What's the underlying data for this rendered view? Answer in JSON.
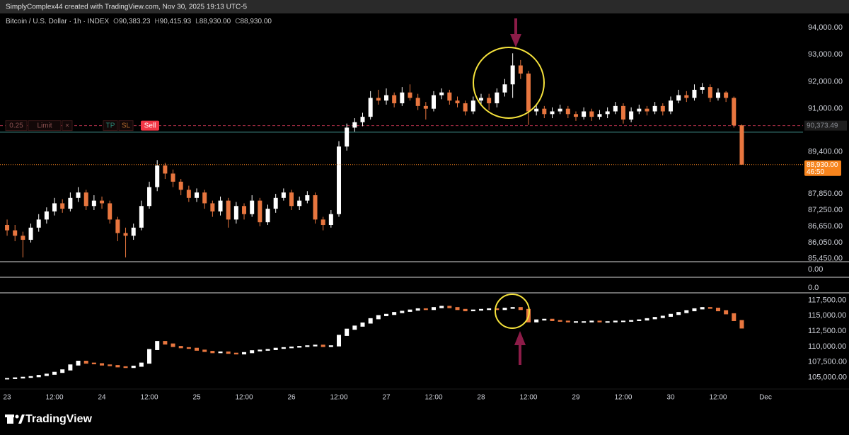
{
  "header": {
    "text": "SimplyComplex44 created with TradingView.com, Nov 30, 2025 19:13 UTC-5"
  },
  "footer": {
    "brand": "TradingView"
  },
  "panels": [
    {
      "label": "0.00"
    },
    {
      "label": "0.0"
    }
  ],
  "chart_data": [
    {
      "type": "candlestick",
      "legend": {
        "symbol": "Bitcoin / U.S. Dollar · 1h · INDEX",
        "fields": [
          {
            "key": "O",
            "label": "90,383.23"
          },
          {
            "key": "H",
            "label": "90,415.93"
          },
          {
            "key": "L",
            "label": "88,930.00"
          },
          {
            "key": "C",
            "label": "88,930.00"
          }
        ]
      },
      "x": [
        0,
        2,
        4,
        6,
        8,
        10,
        12,
        14,
        16,
        18,
        20,
        22,
        24,
        26,
        28,
        30,
        32,
        34,
        36,
        38,
        40,
        42,
        44,
        46,
        48,
        50,
        52,
        54,
        56,
        58,
        60,
        62,
        64,
        66,
        68,
        70,
        72,
        74,
        76,
        78,
        80,
        82,
        84,
        86,
        88,
        90,
        92,
        94,
        96,
        98,
        100,
        102,
        104,
        106,
        108,
        110,
        112,
        114,
        116,
        118,
        120,
        122,
        124,
        126,
        128,
        130,
        132,
        134,
        136,
        138,
        140,
        142,
        144,
        146,
        148,
        150,
        152,
        154,
        156,
        158,
        160,
        162,
        164,
        166,
        168,
        170,
        172,
        174,
        176,
        178,
        180,
        182,
        184,
        186
      ],
      "open": [
        86700,
        86500,
        86300,
        86150,
        86600,
        86900,
        87200,
        87500,
        87300,
        87700,
        87900,
        87400,
        87600,
        87500,
        86900,
        86400,
        86300,
        86600,
        87400,
        88100,
        88900,
        88600,
        88300,
        88000,
        87700,
        87900,
        87500,
        87200,
        87600,
        86900,
        87400,
        87100,
        87600,
        86800,
        87300,
        87700,
        87900,
        87400,
        87600,
        87800,
        86900,
        86700,
        87100,
        89600,
        90300,
        90500,
        90700,
        91400,
        91300,
        91500,
        91200,
        91600,
        91400,
        91100,
        91000,
        91500,
        91600,
        91300,
        91200,
        90900,
        91300,
        91400,
        91200,
        91600,
        91900,
        92600,
        92300,
        90900,
        91000,
        90800,
        90900,
        91000,
        90800,
        90700,
        90900,
        90700,
        90800,
        90900,
        91100,
        90600,
        90900,
        91000,
        90900,
        91100,
        90900,
        91300,
        91500,
        91400,
        91700,
        91800,
        91400,
        91600,
        91400,
        90383.23
      ],
      "high": [
        86900,
        86700,
        86450,
        86750,
        87100,
        87350,
        87700,
        87650,
        87900,
        88100,
        88000,
        87800,
        87750,
        87600,
        87000,
        86600,
        86750,
        87600,
        88300,
        89100,
        89000,
        88750,
        88400,
        88150,
        88050,
        88000,
        87600,
        87750,
        87700,
        87550,
        87500,
        87800,
        87700,
        87450,
        87850,
        88050,
        88000,
        87750,
        87950,
        87900,
        87000,
        87250,
        89800,
        90450,
        90650,
        90850,
        91650,
        91700,
        91750,
        91600,
        91800,
        91900,
        91550,
        91250,
        91650,
        91750,
        91700,
        91450,
        91300,
        91450,
        91550,
        91550,
        91750,
        92100,
        93050,
        92800,
        92400,
        91150,
        91100,
        91050,
        91150,
        91100,
        90900,
        91050,
        91000,
        90950,
        91050,
        91250,
        91200,
        91050,
        91150,
        91100,
        91250,
        91200,
        91450,
        91700,
        91650,
        91900,
        91950,
        91900,
        91750,
        91650,
        91450,
        90415.93
      ],
      "low": [
        86300,
        86100,
        85500,
        86050,
        86450,
        86750,
        87050,
        87150,
        87200,
        87550,
        87250,
        87250,
        87300,
        86750,
        86100,
        85500,
        86150,
        86500,
        87300,
        87950,
        88400,
        88100,
        87800,
        87550,
        87550,
        87300,
        87000,
        87050,
        86600,
        86750,
        86900,
        87000,
        86650,
        86700,
        87150,
        87600,
        87250,
        87250,
        87500,
        86750,
        86500,
        86600,
        87000,
        89450,
        90150,
        90350,
        90600,
        91150,
        91150,
        91050,
        91100,
        91300,
        90950,
        90600,
        90900,
        91350,
        91150,
        91050,
        90750,
        90800,
        91150,
        90950,
        91050,
        91450,
        91400,
        92100,
        90400,
        90750,
        90650,
        90650,
        90800,
        90650,
        90550,
        90600,
        90550,
        90600,
        90650,
        90800,
        90450,
        90500,
        90800,
        90750,
        90800,
        90750,
        90800,
        91200,
        91250,
        91300,
        91550,
        91250,
        91300,
        91250,
        90300,
        88930
      ],
      "close": [
        86500,
        86300,
        86150,
        86600,
        86900,
        87200,
        87500,
        87300,
        87700,
        87900,
        87400,
        87600,
        87500,
        86900,
        86400,
        86300,
        86600,
        87400,
        88100,
        88900,
        88600,
        88300,
        88000,
        87700,
        87900,
        87500,
        87200,
        87600,
        86900,
        87400,
        87100,
        87600,
        86800,
        87300,
        87700,
        87900,
        87400,
        87600,
        87800,
        86900,
        86700,
        87100,
        89600,
        90300,
        90500,
        90700,
        91400,
        91300,
        91500,
        91200,
        91600,
        91400,
        91100,
        91000,
        91500,
        91600,
        91300,
        91200,
        90900,
        91300,
        91400,
        91200,
        91600,
        91900,
        92600,
        92300,
        90900,
        91000,
        90800,
        90900,
        91000,
        90800,
        90700,
        90900,
        90700,
        90800,
        90900,
        91100,
        90600,
        90900,
        91000,
        90900,
        91100,
        90900,
        91300,
        91500,
        91400,
        91700,
        91800,
        91400,
        91600,
        91400,
        90383.23,
        88930
      ],
      "up_color": "#ffffff",
      "down_color": "#e8763f",
      "xlim": [
        -1.8,
        201.5
      ],
      "ylim": [
        85340,
        94550
      ],
      "grid": false,
      "yticks": [
        {
          "value": 94000,
          "label": "94,000.00"
        },
        {
          "value": 93000,
          "label": "93,000.00"
        },
        {
          "value": 92000,
          "label": "92,000.00"
        },
        {
          "value": 91000,
          "label": "91,000.00"
        },
        {
          "value": 89400,
          "label": "89,400.00"
        },
        {
          "value": 87850,
          "label": "87,850.00"
        },
        {
          "value": 87250,
          "label": "87,250.00"
        },
        {
          "value": 86650,
          "label": "86,650.00"
        },
        {
          "value": 86050,
          "label": "86,050.00"
        },
        {
          "value": 85450,
          "label": "85,450.00"
        }
      ],
      "price_lines": [
        {
          "value": 90373.49,
          "label": "90,373.49",
          "color": "#b2304a",
          "style": "dashed"
        },
        {
          "value": 90130,
          "color": "#3f8f8a",
          "style": "solid"
        }
      ],
      "last_price": {
        "label": "88,930.00",
        "countdown": "46:50",
        "color": "#f7841d"
      },
      "order": {
        "qty": "0.25",
        "kind": "Limit",
        "cancel": "×",
        "tp": "TP",
        "sl": "SL",
        "side": "Sell"
      }
    },
    {
      "type": "candlestick",
      "x": [
        0,
        2,
        4,
        6,
        8,
        10,
        12,
        14,
        16,
        18,
        20,
        22,
        24,
        26,
        28,
        30,
        32,
        34,
        36,
        38,
        40,
        42,
        44,
        46,
        48,
        50,
        52,
        54,
        56,
        58,
        60,
        62,
        64,
        66,
        68,
        70,
        72,
        74,
        76,
        78,
        80,
        82,
        84,
        86,
        88,
        90,
        92,
        94,
        96,
        98,
        100,
        102,
        104,
        106,
        108,
        110,
        112,
        114,
        116,
        118,
        120,
        122,
        124,
        126,
        128,
        130,
        132,
        134,
        136,
        138,
        140,
        142,
        144,
        146,
        148,
        150,
        152,
        154,
        156,
        158,
        160,
        162,
        164,
        166,
        168,
        170,
        172,
        174,
        176,
        178,
        180,
        182,
        184,
        186
      ],
      "close": [
        104800,
        104900,
        105000,
        105100,
        105300,
        105500,
        105800,
        106200,
        107000,
        107600,
        107300,
        107200,
        107000,
        106900,
        106700,
        106600,
        106800,
        107300,
        109500,
        110800,
        110400,
        110000,
        109800,
        109700,
        109400,
        109200,
        109000,
        109100,
        108900,
        108800,
        109000,
        109300,
        109400,
        109500,
        109700,
        109800,
        109900,
        110000,
        110100,
        110200,
        110000,
        110100,
        111800,
        112800,
        113300,
        113800,
        114500,
        115000,
        115200,
        115500,
        115700,
        115900,
        116100,
        116000,
        116300,
        116500,
        116300,
        116000,
        115800,
        115900,
        116000,
        116100,
        116000,
        116200,
        116300,
        116000,
        114000,
        114300,
        114400,
        114200,
        114100,
        114000,
        114000,
        114000,
        114100,
        114000,
        114000,
        114100,
        114100,
        114200,
        114300,
        114500,
        114700,
        114900,
        115200,
        115500,
        115800,
        116100,
        116300,
        116200,
        115800,
        115300,
        114200,
        113000
      ],
      "up_color": "#ffffff",
      "down_color": "#e8763f",
      "xlim": [
        -1.8,
        201.5
      ],
      "ylim": [
        103100,
        118700
      ],
      "grid": false,
      "yticks": [
        {
          "value": 117500,
          "label": "117,500.00"
        },
        {
          "value": 115000,
          "label": "115,000.00"
        },
        {
          "value": 112500,
          "label": "112,500.00"
        },
        {
          "value": 110000,
          "label": "110,000.00"
        },
        {
          "value": 107500,
          "label": "107,500.00"
        },
        {
          "value": 105000,
          "label": "105,000.00"
        }
      ],
      "xticks": [
        {
          "value": 0,
          "label": "23"
        },
        {
          "value": 12,
          "label": "12:00"
        },
        {
          "value": 24,
          "label": "24"
        },
        {
          "value": 36,
          "label": "12:00"
        },
        {
          "value": 48,
          "label": "25"
        },
        {
          "value": 60,
          "label": "12:00"
        },
        {
          "value": 72,
          "label": "26"
        },
        {
          "value": 84,
          "label": "12:00"
        },
        {
          "value": 96,
          "label": "27"
        },
        {
          "value": 108,
          "label": "12:00"
        },
        {
          "value": 120,
          "label": "28"
        },
        {
          "value": 132,
          "label": "12:00"
        },
        {
          "value": 144,
          "label": "29"
        },
        {
          "value": 156,
          "label": "12:00"
        },
        {
          "value": 168,
          "label": "30"
        },
        {
          "value": 180,
          "label": "12:00"
        },
        {
          "value": 192,
          "label": "Dec"
        }
      ]
    }
  ]
}
